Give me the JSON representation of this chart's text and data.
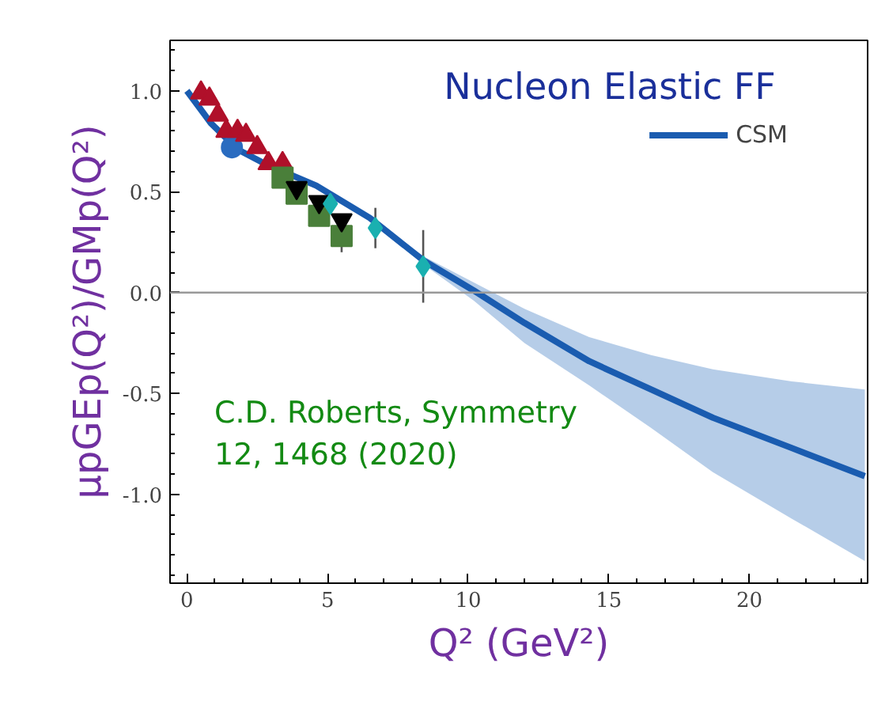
{
  "chart_data": {
    "type": "scatter",
    "title": "Nucleon Elastic FF",
    "xlabel": "Q² (GeV²)",
    "ylabel": "μpGEp(Q²)/GMp(Q²)",
    "annotations": [
      "C.D. Roberts, Symmetry\n12, 1468 (2020)"
    ],
    "xlim": [
      -0.6,
      24.2
    ],
    "ylim": [
      -1.44,
      1.25
    ],
    "xticks": [
      0,
      5,
      10,
      15,
      20
    ],
    "yticks": [
      {
        "value": -1.0,
        "label": "-1.0"
      },
      {
        "value": -0.5,
        "label": "-0.5"
      },
      {
        "value": 0.0,
        "label": "0.0"
      },
      {
        "value": 0.5,
        "label": "0.5"
      },
      {
        "value": 1.0,
        "label": "1.0"
      }
    ],
    "ref_lines": [
      {
        "axis": "y",
        "value": 0,
        "color": "#999999"
      }
    ],
    "legend": "top right",
    "grid": false,
    "series": [
      {
        "name": "CSM",
        "type": "line",
        "color": "#1a5cb0",
        "x": [
          0,
          0.85,
          1.8,
          2.75,
          4.6,
          6.5,
          8.4,
          10.2,
          12,
          14.3,
          16.5,
          18.7,
          21.5,
          24.1
        ],
        "values": [
          1.0,
          0.84,
          0.71,
          0.64,
          0.53,
          0.37,
          0.16,
          0.01,
          -0.15,
          -0.34,
          -0.48,
          -0.62,
          -0.77,
          -0.91
        ],
        "lower": [
          1.0,
          0.84,
          0.71,
          0.64,
          0.53,
          0.37,
          0.14,
          -0.04,
          -0.25,
          -0.46,
          -0.67,
          -0.89,
          -1.12,
          -1.33
        ],
        "upper": [
          1.0,
          0.84,
          0.71,
          0.64,
          0.53,
          0.37,
          0.18,
          0.05,
          -0.08,
          -0.22,
          -0.31,
          -0.38,
          -0.44,
          -0.48
        ]
      },
      {
        "marker": "circle",
        "color": "#2a6cc0",
        "x": [
          1.6
        ],
        "values": [
          0.72
        ]
      },
      {
        "marker": "triangle",
        "color": "#b0102a",
        "x": [
          0.5,
          0.8,
          1.1,
          1.4,
          1.8,
          2.1,
          2.5,
          2.9,
          3.4
        ],
        "values": [
          0.99,
          0.96,
          0.88,
          0.8,
          0.8,
          0.78,
          0.72,
          0.64,
          0.64
        ]
      },
      {
        "marker": "square",
        "color": "#4a7f3a",
        "x": [
          3.4,
          3.9,
          4.7,
          5.5
        ],
        "values": [
          0.57,
          0.49,
          0.38,
          0.28
        ],
        "errors": [
          0.05,
          0.05,
          0.05,
          0.08
        ]
      },
      {
        "color": "#000000",
        "x": [
          3.9,
          4.7,
          5.5
        ],
        "values": [
          0.52,
          0.45,
          0.36
        ]
      },
      {
        "marker": "diamond",
        "color": "#1ab0b0",
        "x": [
          5.1,
          6.7,
          8.4
        ],
        "values": [
          0.44,
          0.32,
          0.13
        ],
        "errors": [
          null,
          0.1,
          0.18
        ]
      }
    ]
  }
}
